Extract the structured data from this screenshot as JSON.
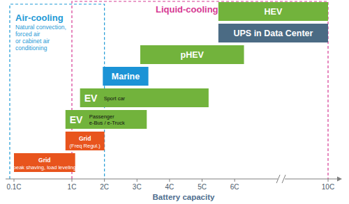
{
  "chart_data": {
    "type": "range_bar",
    "orientation": "horizontal",
    "xlabel": "Battery capacity",
    "xlim": [
      0.1,
      10
    ],
    "xticks": [
      {
        "value": 0.1,
        "label": "0.1C"
      },
      {
        "value": 1,
        "label": "1C"
      },
      {
        "value": 2,
        "label": "2C"
      },
      {
        "value": 3,
        "label": "3C"
      },
      {
        "value": 4,
        "label": "4C"
      },
      {
        "value": 5,
        "label": "5C"
      },
      {
        "value": 6,
        "label": "6C"
      },
      {
        "value": 10,
        "label": "10C"
      }
    ],
    "regions": [
      {
        "name": "Air-cooling",
        "note": [
          "Natural convection,",
          "forced air",
          "or cabinet air",
          "conditioning"
        ],
        "values": [
          0.1,
          2
        ],
        "color": "#1f9ad6"
      },
      {
        "name": "Liquid-cooling",
        "values": [
          1,
          10
        ],
        "color": "#d63a93"
      }
    ],
    "bars": [
      {
        "name": "HEV",
        "values": [
          5.5,
          10
        ],
        "color": "#72b33c"
      },
      {
        "name": "UPS in Data Center",
        "values": [
          5.5,
          10
        ],
        "color": "#4b6b84"
      },
      {
        "name": "pHEV",
        "values": [
          3.1,
          6.4
        ],
        "color": "#72b33c"
      },
      {
        "name": "Marine",
        "values": [
          1.95,
          3.35
        ],
        "color": "#1b93d6"
      },
      {
        "name": "EV",
        "note": [
          "Sport car"
        ],
        "values": [
          1.25,
          5.2
        ],
        "color": "#72b33c"
      },
      {
        "name": "EV",
        "note": [
          "Passenger",
          "e-Bus / e-Truck"
        ],
        "values": [
          0.9,
          3.3
        ],
        "color": "#72b33c"
      },
      {
        "name": "Grid",
        "note": [
          "(Freq Regul.)"
        ],
        "values": [
          0.9,
          2.0
        ],
        "color": "#e8541d"
      },
      {
        "name": "Grid",
        "note": [
          "(peak shaving, load leveling)"
        ],
        "values": [
          0.1,
          1.1
        ],
        "color": "#e8541d"
      }
    ]
  }
}
